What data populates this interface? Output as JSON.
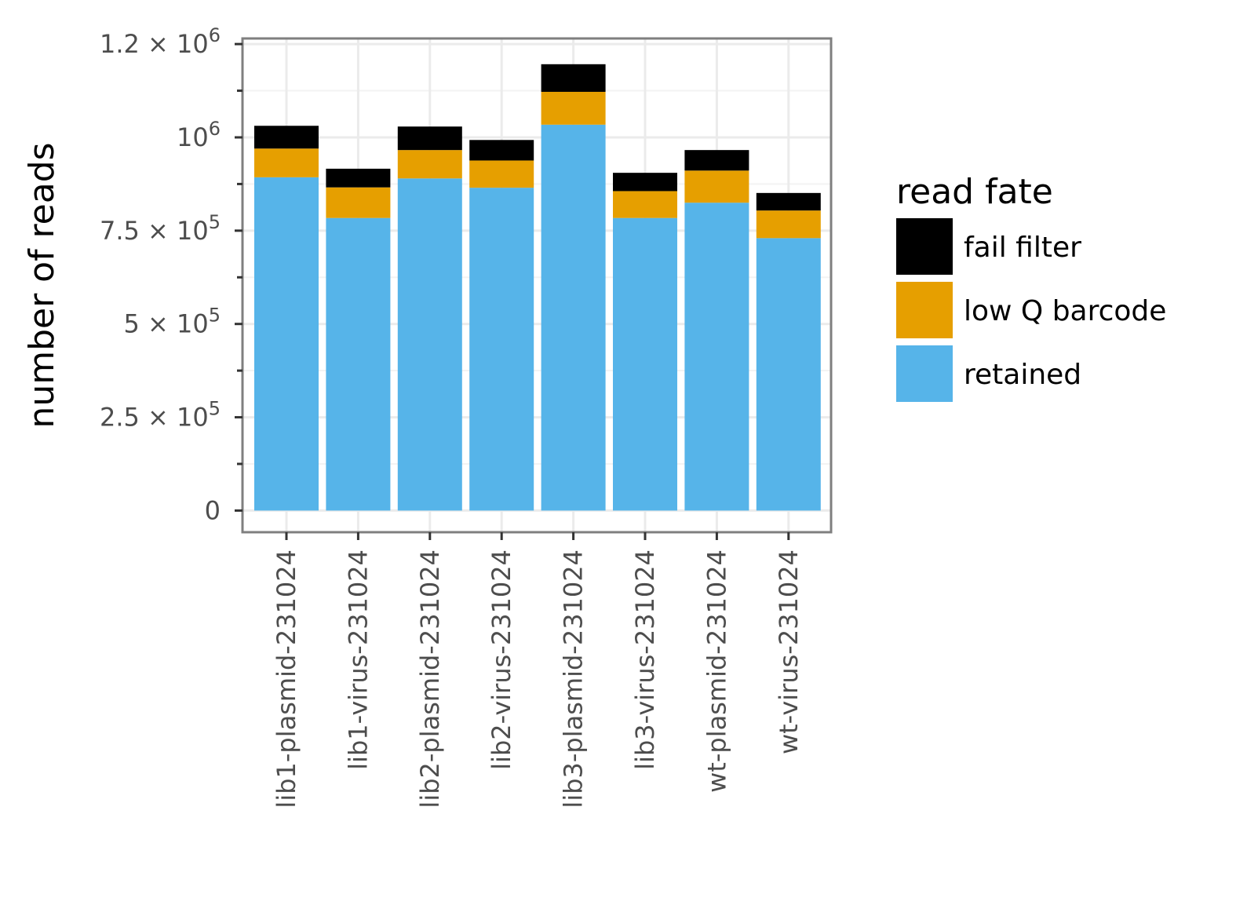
{
  "chart_data": {
    "type": "bar",
    "stacked": true,
    "categories": [
      "lib1-plasmid-231024",
      "lib1-virus-231024",
      "lib2-plasmid-231024",
      "lib2-virus-231024",
      "lib3-plasmid-231024",
      "lib3-virus-231024",
      "wt-plasmid-231024",
      "wt-virus-231024"
    ],
    "series": [
      {
        "name": "retained",
        "color": "#56B4E9",
        "values": [
          893000,
          784000,
          890000,
          865000,
          1034000,
          784000,
          825000,
          730000
        ]
      },
      {
        "name": "low Q barcode",
        "color": "#E69F00",
        "values": [
          77000,
          82000,
          76000,
          73000,
          88000,
          72000,
          86000,
          74000
        ]
      },
      {
        "name": "fail filter",
        "color": "#000000",
        "values": [
          61000,
          50000,
          63000,
          55000,
          74000,
          49000,
          55000,
          47000
        ]
      }
    ],
    "ylim": [
      -58000,
      1265000
    ],
    "yticks": [
      {
        "value": 0,
        "label": "0"
      },
      {
        "value": 250000,
        "label": "2.5 × 10^5"
      },
      {
        "value": 500000,
        "label": "5 × 10^5"
      },
      {
        "value": 750000,
        "label": "7.5 × 10^5"
      },
      {
        "value": 1000000,
        "label": "10^6"
      },
      {
        "value": 1250000,
        "label": "1.2 × 10^6"
      }
    ],
    "yminor_ticks": [
      125000,
      375000,
      625000,
      875000,
      1125000
    ],
    "xlabel": "",
    "ylabel": "number of reads",
    "legend": {
      "title": "read fate",
      "position": "right",
      "entries": [
        {
          "label": "fail filter",
          "color": "#000000"
        },
        {
          "label": "low Q barcode",
          "color": "#E69F00"
        },
        {
          "label": "retained",
          "color": "#56B4E9"
        }
      ]
    },
    "grid": true,
    "panel_background": "#ffffff",
    "grid_color": "#ebebeb",
    "panel_border_color": "#7f7f7f"
  }
}
